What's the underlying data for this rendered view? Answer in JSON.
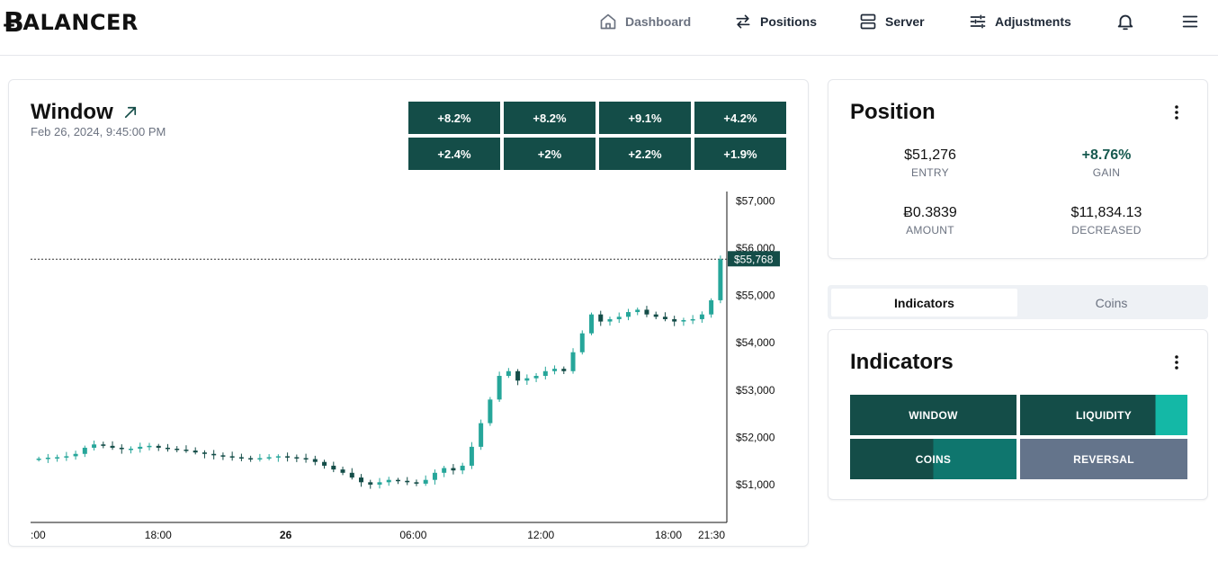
{
  "brand": {
    "logo_text": "ALANCER",
    "logo_glyph": "Ƀ"
  },
  "nav": {
    "dashboard": "Dashboard",
    "positions": "Positions",
    "server": "Server",
    "adjustments": "Adjustments"
  },
  "window_card": {
    "title": "Window",
    "timestamp": "Feb 26, 2024, 9:45:00 PM",
    "percent_changes": [
      "+8.2%",
      "+8.2%",
      "+9.1%",
      "+4.2%",
      "+2.4%",
      "+2%",
      "+2.2%",
      "+1.9%"
    ]
  },
  "position_card": {
    "title": "Position",
    "stats": [
      {
        "value": "$51,276",
        "label": "ENTRY"
      },
      {
        "value": "+8.76%",
        "label": "GAIN"
      },
      {
        "value": "Ƀ0.3839",
        "label": "AMOUNT"
      },
      {
        "value": "$11,834.13",
        "label": "DECREASED"
      }
    ]
  },
  "tabs": {
    "indicators": "Indicators",
    "coins": "Coins"
  },
  "indicators_card": {
    "title": "Indicators",
    "buttons": [
      {
        "label": "WINDOW",
        "fill": 1.0
      },
      {
        "label": "LIQUIDITY",
        "fill": 0.81
      },
      {
        "label": "COINS",
        "fill": 0.5
      },
      {
        "label": "REVERSAL",
        "fill": 0
      }
    ]
  },
  "colors": {
    "dark_teal": "#144d48",
    "mid_teal": "#0f766e",
    "light_teal": "#14b8a6",
    "slate": "#64748b",
    "candle_up": "#26a69a",
    "candle_down": "#144d48"
  },
  "chart_data": {
    "type": "candlestick",
    "y_ticks": [
      "$57,000",
      "$56,000",
      "$55,000",
      "$54,000",
      "$53,000",
      "$52,000",
      "$51,000"
    ],
    "y_tick_values": [
      57000,
      56000,
      55000,
      54000,
      53000,
      52000,
      51000
    ],
    "x_ticks": [
      ":00",
      "18:00",
      "26",
      "06:00",
      "12:00",
      "18:00",
      "21:30"
    ],
    "x_tick_hours": [
      12,
      18,
      24,
      30,
      36,
      42,
      45.5
    ],
    "x_range_hours": [
      12,
      44.75
    ],
    "y_range": [
      50200,
      57200
    ],
    "last_price": 55768,
    "last_price_label": "$55,768",
    "close_series": [
      51550,
      51570,
      51580,
      51600,
      51650,
      51780,
      51850,
      51820,
      51780,
      51750,
      51760,
      51800,
      51820,
      51780,
      51760,
      51740,
      51720,
      51680,
      51650,
      51620,
      51600,
      51580,
      51560,
      51540,
      51560,
      51580,
      51600,
      51580,
      51560,
      51540,
      51480,
      51400,
      51320,
      51250,
      51150,
      51050,
      51000,
      51050,
      51100,
      51080,
      51050,
      51020,
      51100,
      51250,
      51350,
      51300,
      51400,
      51800,
      52300,
      52800,
      53300,
      53400,
      53200,
      53250,
      53300,
      53400,
      53450,
      53400,
      53800,
      54200,
      54600,
      54450,
      54500,
      54550,
      54650,
      54700,
      54600,
      54550,
      54500,
      54450,
      54480,
      54500,
      54600,
      54900,
      55768
    ]
  }
}
